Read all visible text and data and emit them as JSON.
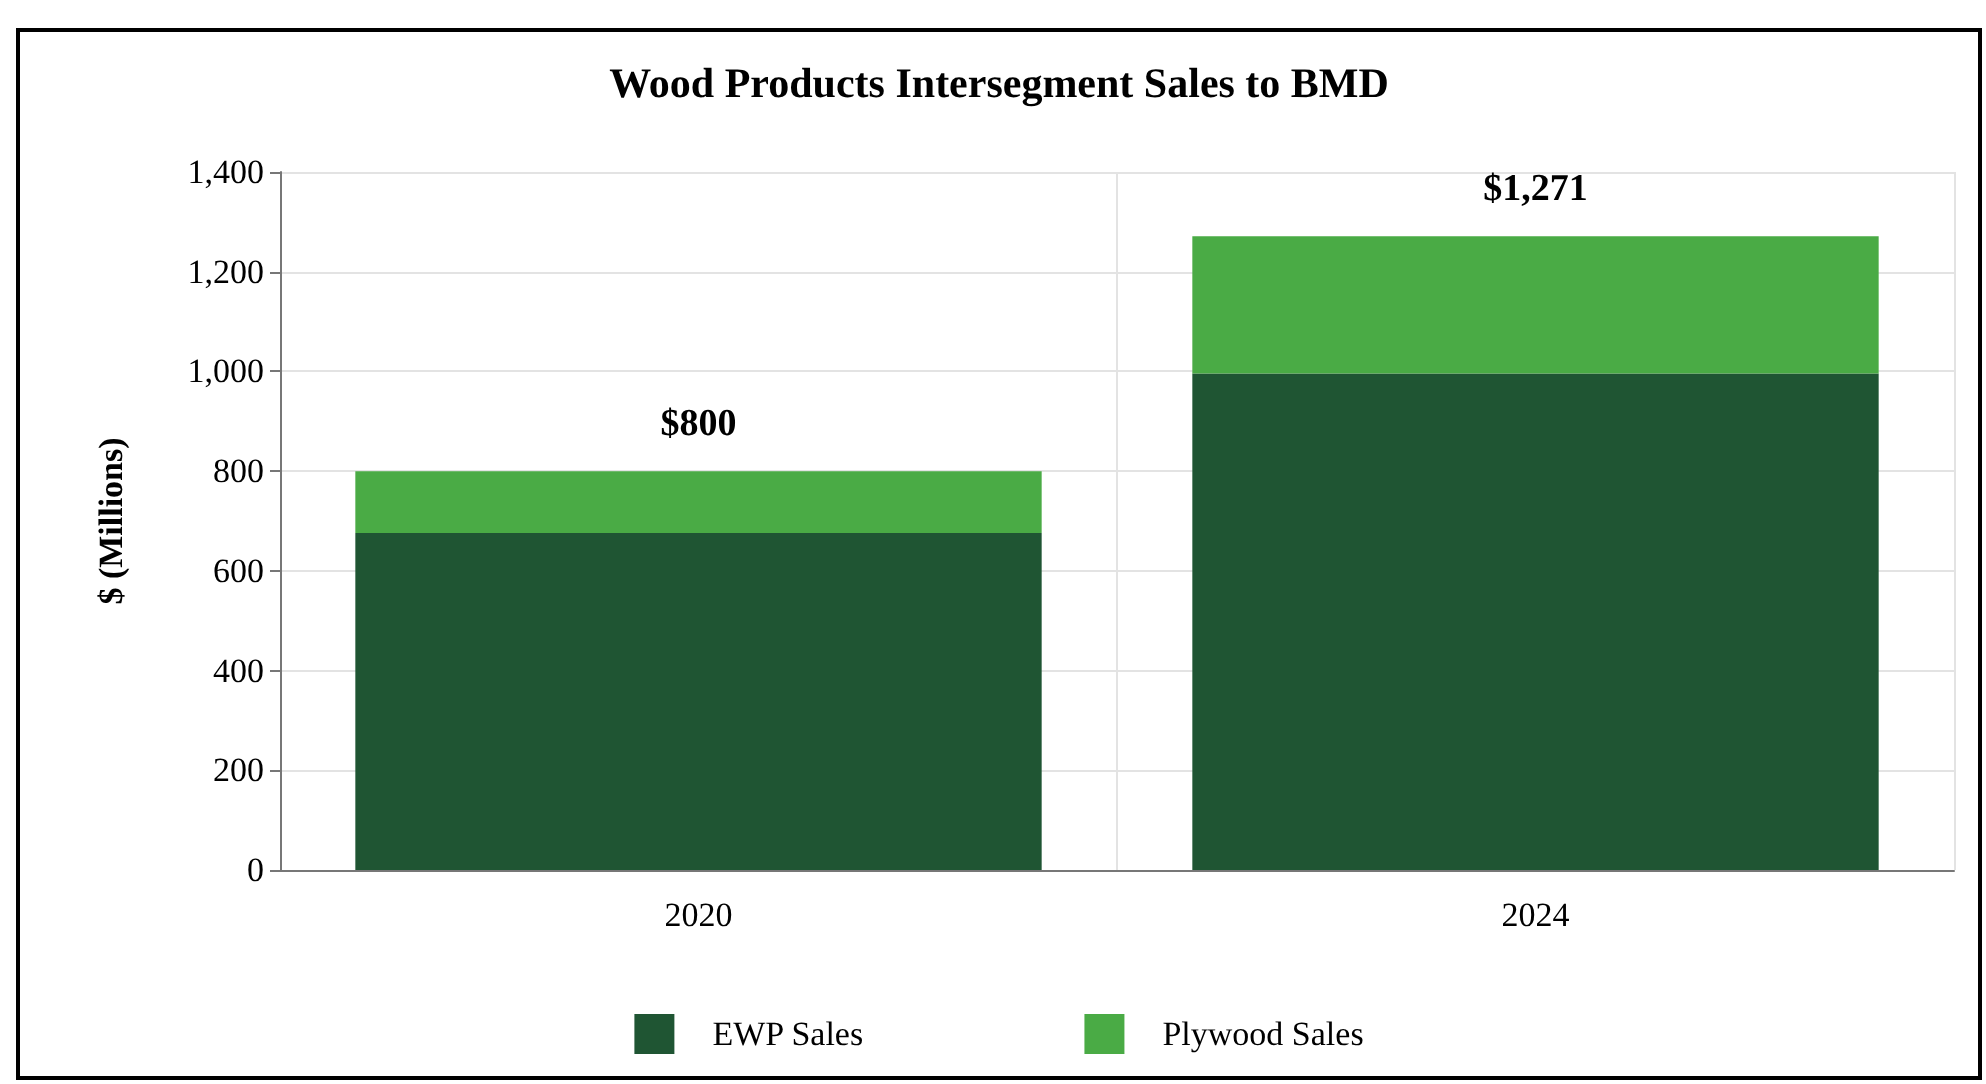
{
  "chart_data": {
    "type": "bar",
    "title": "Wood Products Intersegment Sales to BMD",
    "ylabel": "$ (Millions)",
    "categories": [
      "2020",
      "2024"
    ],
    "stacked": true,
    "series": [
      {
        "name": "EWP Sales",
        "color": "#1f5533",
        "values": [
          676,
          996
        ]
      },
      {
        "name": "Plywood Sales",
        "color": "#4aab45",
        "values": [
          124,
          275
        ]
      }
    ],
    "totals": [
      "$800",
      "$1,271"
    ],
    "ylim": [
      0,
      1400
    ],
    "yticks": [
      0,
      200,
      400,
      600,
      800,
      {
        "value": 1000,
        "label": "1,000"
      },
      {
        "value": 1200,
        "label": "1,200"
      },
      {
        "value": 1400,
        "label": "1,400"
      }
    ],
    "grid": true,
    "legend": "bottom"
  }
}
